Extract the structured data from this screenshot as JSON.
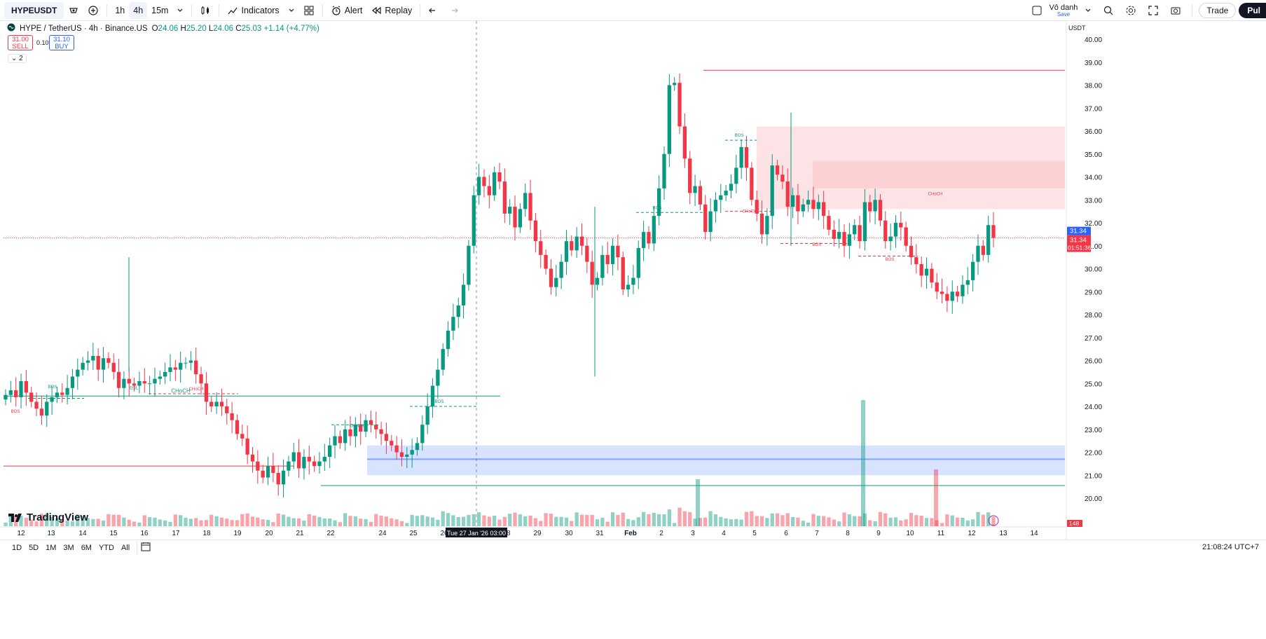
{
  "toolbar": {
    "symbol": "HYPEUSDT",
    "intervals": [
      "1h",
      "4h",
      "15m"
    ],
    "active_interval": "4h",
    "indicators_label": "Indicators",
    "alert_label": "Alert",
    "replay_label": "Replay",
    "user_name": "Vô danh",
    "user_status": "Save",
    "trade_label": "Trade",
    "publish_label": "Pul"
  },
  "legend": {
    "title": "HYPE / TetherUS · 4h · Binance.US",
    "open_label": "O",
    "open": "24.06",
    "high_label": "H",
    "high": "25.20",
    "low_label": "L",
    "low": "24.06",
    "close_label": "C",
    "close": "25.03",
    "change": "+1.14 (+4.77%)"
  },
  "trade": {
    "sell_price": "31.00",
    "sell_label": "SELL",
    "spread": "0.10",
    "buy_price": "31.10",
    "buy_label": "BUY",
    "collapse_label": "2"
  },
  "price_scale": {
    "currency": "USDT",
    "last_price": "31.34",
    "last_price_red": "31.34",
    "countdown": "01:51:36",
    "volume_tag": "148"
  },
  "crosshair": {
    "time_label": "Tue 27 Jan '26   03:00"
  },
  "bottom": {
    "ranges": [
      "1D",
      "5D",
      "1M",
      "3M",
      "6M",
      "YTD",
      "All"
    ],
    "clock": "21:08:24 UTC+7"
  },
  "brand": {
    "logo_text": "TradingView"
  },
  "colors": {
    "up": "#089981",
    "down": "#f23645",
    "accent": "#2962ff"
  },
  "chart_data": {
    "type": "candlestick",
    "title": "HYPE / TetherUS · 4h · Binance.US",
    "ylim": [
      19.5,
      40.3
    ],
    "y_ticks": [
      "20.00",
      "21.00",
      "22.00",
      "23.00",
      "24.00",
      "25.00",
      "26.00",
      "27.00",
      "28.00",
      "29.00",
      "30.00",
      "31.00",
      "32.00",
      "33.00",
      "34.00",
      "35.00",
      "36.00",
      "37.00",
      "38.00",
      "39.00",
      "40.00"
    ],
    "x_ticks": [
      "12",
      "13",
      "14",
      "15",
      "16",
      "17",
      "18",
      "19",
      "20",
      "21",
      "22",
      "24",
      "25",
      "26",
      "27",
      "28",
      "29",
      "30",
      "31",
      "Feb",
      "2",
      "3",
      "4",
      "5",
      "6",
      "7",
      "8",
      "9",
      "10",
      "11",
      "12",
      "13",
      "14"
    ],
    "candles_closes": [
      24.5,
      24.7,
      24.4,
      25.1,
      24.6,
      24.2,
      23.9,
      23.6,
      24.2,
      24.4,
      24.6,
      24.5,
      24.8,
      25.3,
      25.6,
      25.9,
      26.0,
      26.2,
      25.6,
      26.1,
      25.9,
      25.5,
      24.8,
      25.2,
      25.0,
      24.9,
      25.1,
      25.0,
      25.0,
      25.2,
      25.3,
      25.5,
      25.7,
      25.6,
      25.9,
      25.9,
      26.0,
      25.4,
      25.0,
      24.2,
      24.0,
      24.2,
      24.0,
      23.7,
      23.4,
      22.8,
      22.6,
      21.9,
      21.6,
      21.2,
      20.9,
      21.4,
      21.1,
      20.6,
      21.2,
      21.6,
      22.0,
      21.3,
      21.8,
      21.6,
      21.4,
      21.6,
      21.8,
      22.3,
      22.7,
      22.4,
      23.0,
      22.7,
      23.2,
      22.9,
      23.4,
      23.2,
      23.0,
      22.8,
      22.5,
      22.3,
      22.0,
      21.8,
      21.9,
      22.1,
      22.4,
      23.2,
      24.0,
      24.9,
      25.6,
      26.5,
      27.3,
      27.9,
      28.4,
      29.3,
      31.0,
      33.2,
      34.0,
      33.6,
      33.2,
      34.2,
      33.8,
      32.4,
      32.7,
      31.8,
      32.6,
      33.3,
      32.1,
      31.2,
      30.6,
      30.0,
      29.2,
      29.6,
      30.3,
      31.2,
      30.8,
      31.4,
      31.0,
      30.3,
      29.3,
      29.6,
      30.6,
      30.2,
      31.0,
      30.5,
      29.1,
      29.3,
      29.6,
      30.9,
      31.6,
      31.1,
      32.3,
      33.5,
      35.0,
      38.0,
      38.1,
      36.2,
      34.8,
      33.3,
      33.6,
      32.8,
      31.6,
      32.5,
      33.0,
      33.2,
      33.4,
      33.7,
      34.4,
      35.3,
      34.4,
      33.0,
      32.4,
      31.5,
      32.3,
      34.5,
      34.1,
      33.8,
      32.7,
      33.2,
      32.5,
      32.8,
      33.0,
      32.6,
      32.9,
      32.3,
      31.7,
      31.3,
      31.6,
      31.0,
      31.5,
      31.9,
      31.2,
      32.9,
      32.5,
      33.0,
      32.1,
      31.2,
      31.4,
      32.0,
      31.8,
      31.0,
      30.5,
      30.2,
      29.7,
      30.0,
      29.4,
      29.0,
      28.9,
      28.6,
      29.0,
      28.8,
      29.3,
      29.5,
      30.3,
      31.0,
      30.6,
      31.9,
      31.34
    ],
    "zones": [
      {
        "kind": "supply",
        "from": 32.6,
        "to": 36.2
      },
      {
        "kind": "demand",
        "from": 21.0,
        "to": 22.3
      }
    ],
    "labels": [
      "CHoCH",
      "BOS",
      "BOS",
      "CHoCH",
      "EQL",
      "CHoCH",
      "BOS",
      "CHoCH",
      "BOS",
      "CHoCH",
      "BOS",
      "BOS",
      "BOS"
    ],
    "volume_tag": "148",
    "last_price": 31.34
  }
}
